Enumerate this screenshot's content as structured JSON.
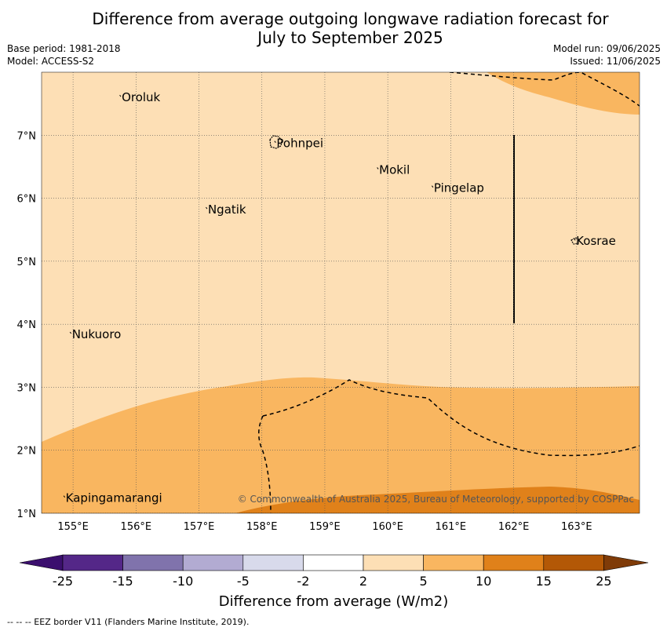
{
  "title_line1": "Difference from average outgoing longwave radiation forecast for",
  "title_line2": "July to September 2025",
  "base_period": "Base period: 1981-2018",
  "model": "Model: ACCESS-S2",
  "model_run": "Model run: 09/06/2025",
  "issued": "Issued: 11/06/2025",
  "copyright": "© Commonwealth of Australia 2025, Bureau of Meteorology, supported by COSPPac",
  "footer": "--  --  -- EEZ border V11 (Flanders Marine Institute, 2019).",
  "map": {
    "lon_range": [
      154.5,
      164.0
    ],
    "lat_range": [
      1.0,
      8.0
    ],
    "lon_ticks": [
      "155°E",
      "156°E",
      "157°E",
      "158°E",
      "159°E",
      "160°E",
      "161°E",
      "162°E",
      "163°E"
    ],
    "lat_ticks": [
      "1°N",
      "2°N",
      "3°N",
      "4°N",
      "5°N",
      "6°N",
      "7°N"
    ],
    "places": [
      {
        "name": "Oroluk",
        "lon": 155.76,
        "lat": 7.6
      },
      {
        "name": "Pohnpei",
        "lon": 158.22,
        "lat": 6.87
      },
      {
        "name": "Mokil",
        "lon": 159.85,
        "lat": 6.45
      },
      {
        "name": "Pingelap",
        "lon": 160.72,
        "lat": 6.16
      },
      {
        "name": "Ngatik",
        "lon": 157.13,
        "lat": 5.82
      },
      {
        "name": "Kosrae",
        "lon": 162.98,
        "lat": 5.32
      },
      {
        "name": "Nukuoro",
        "lon": 154.97,
        "lat": 3.84
      },
      {
        "name": "Kapingamarangi",
        "lon": 154.87,
        "lat": 1.24
      }
    ],
    "colors": {
      "2_5": "#fddfb5",
      "5_10": "#f9b660",
      "10_15": "#e0811a",
      "grid": "#555555"
    }
  },
  "legend": {
    "bounds": [
      "-25",
      "-15",
      "-10",
      "-5",
      "-2",
      "2",
      "5",
      "10",
      "15",
      "25"
    ],
    "colors": [
      "#3b0f6e",
      "#542788",
      "#8073ac",
      "#b2abd2",
      "#d8daeb",
      "#ffffff",
      "#fddfb5",
      "#f9b660",
      "#e0811a",
      "#b35806",
      "#7f3b08"
    ],
    "label": "Difference from average (W/m2)"
  }
}
